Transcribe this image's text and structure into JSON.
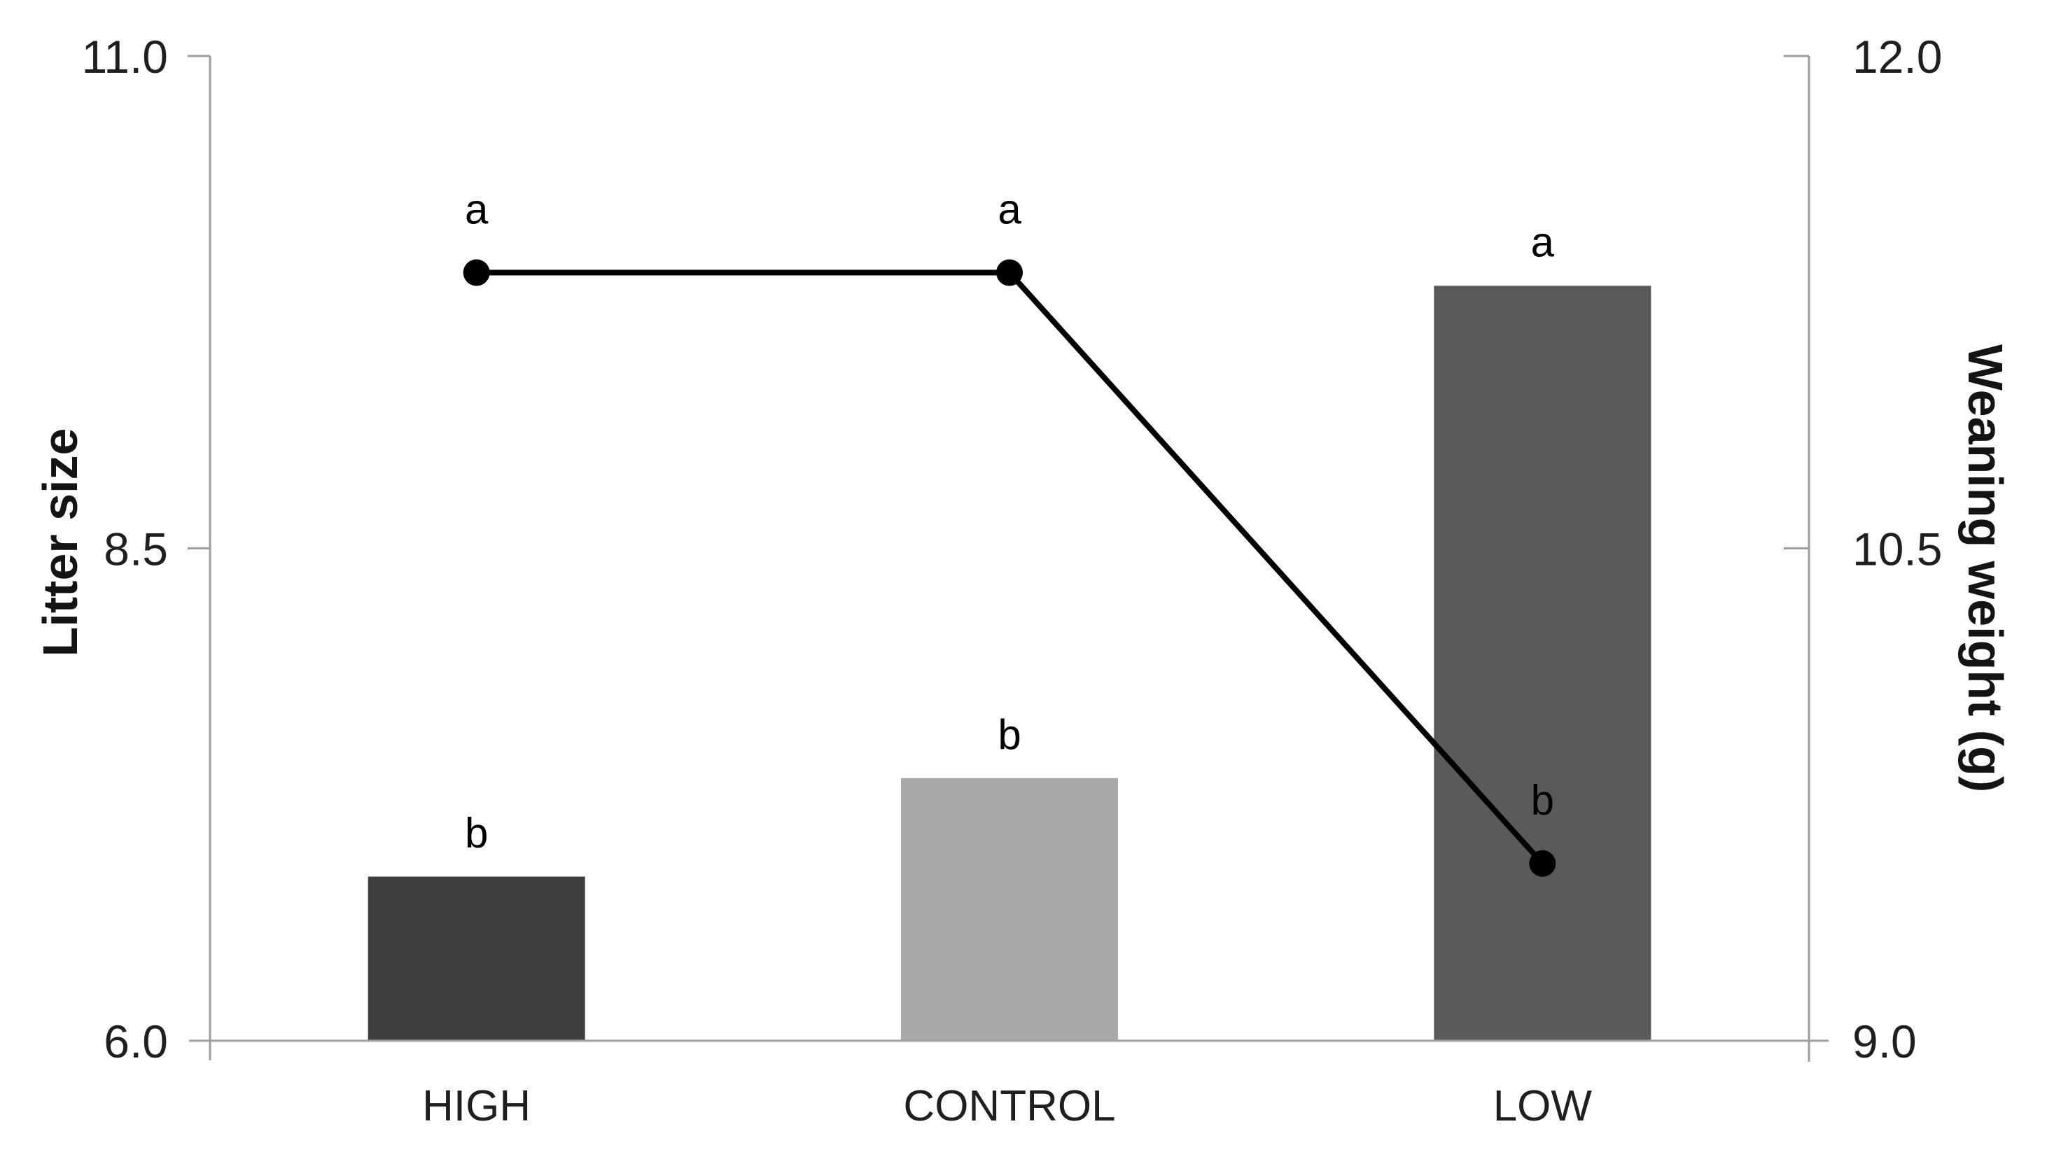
{
  "figure": {
    "background": "#ffffff",
    "axis_color": "#9e9e9e",
    "text_color": "#1f1f1f"
  },
  "chart_data": {
    "type": "bar",
    "subtype": "combo-bar-line-dual-axis",
    "title": "",
    "categories": [
      "HIGH",
      "CONTROL",
      "LOW"
    ],
    "series": [
      {
        "name": "Weaning weight (g)",
        "plot": "bar",
        "axis": "right",
        "values": [
          9.5,
          9.8,
          11.3
        ],
        "bar_colors": [
          "#3e3e3e",
          "#a9a9a9",
          "#5a5a5a"
        ],
        "point_labels": [
          "b",
          "b",
          "a"
        ]
      },
      {
        "name": "Litter size",
        "plot": "line",
        "axis": "left",
        "values": [
          9.9,
          9.9,
          6.9
        ],
        "line_color": "#000000",
        "marker": "circle",
        "point_labels": [
          "a",
          "a",
          "b"
        ]
      }
    ],
    "axes": {
      "left": {
        "title": "Litter size",
        "ticks": [
          "6.0",
          "8.5",
          "11.0"
        ],
        "min": 6.0,
        "max": 11.0
      },
      "right": {
        "title": "Weaning weight (g)",
        "ticks": [
          "9.0",
          "10.5",
          "12.0"
        ],
        "min": 9.0,
        "max": 12.0
      },
      "x": {
        "labels": [
          "HIGH",
          "CONTROL",
          "LOW"
        ]
      }
    },
    "grid": false,
    "legend": false
  }
}
